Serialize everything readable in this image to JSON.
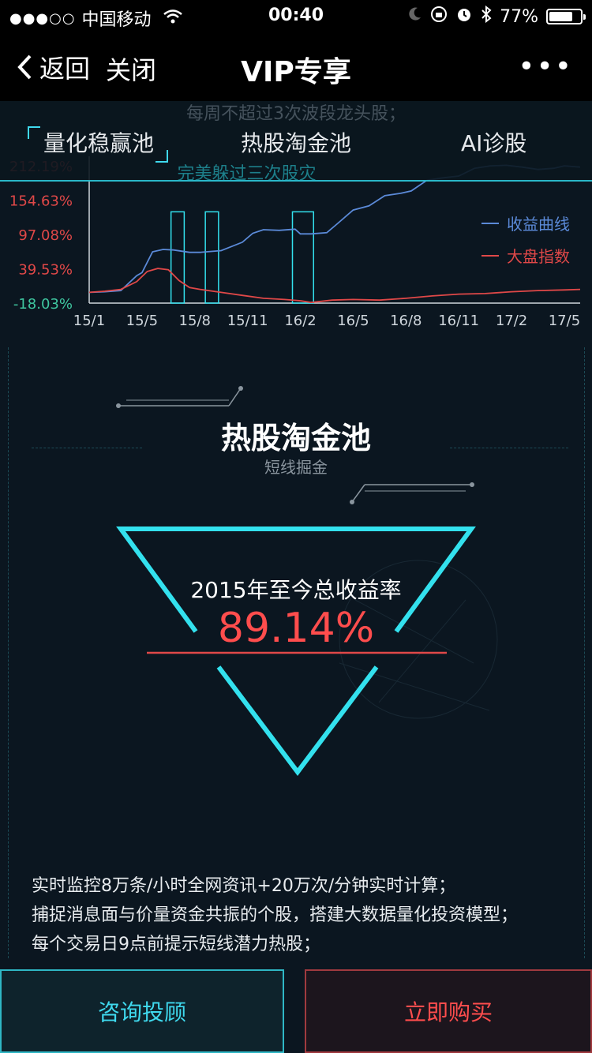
{
  "status_bar": {
    "signal": "●●●○○",
    "carrier": "中国移动",
    "time": "00:40",
    "battery": "77%",
    "battery_level": 0.77
  },
  "nav": {
    "back": "返回",
    "close": "关闭",
    "title": "VIP专享",
    "more": "•••"
  },
  "tabs": {
    "ghost_text_top": "每周不超过3次波段龙头股；",
    "ghost_text_bottom": "完美躲过三次股灾",
    "items": [
      "量化稳赢池",
      "热股淘金池",
      "AI诊股"
    ],
    "active": 0
  },
  "chart_data": {
    "type": "line",
    "ytick_labels": [
      "212.19%",
      "154.63%",
      "97.08%",
      "39.53%",
      "-18.03%"
    ],
    "ytick_values": [
      212.19,
      154.63,
      97.08,
      39.53,
      -18.03
    ],
    "ylim": [
      -18.03,
      212.19
    ],
    "x_categories": [
      "15/1",
      "15/5",
      "15/8",
      "15/11",
      "16/2",
      "16/5",
      "16/8",
      "16/11",
      "17/2",
      "17/5"
    ],
    "series": [
      {
        "name": "收益曲线",
        "color": "#5b8ad8",
        "x": [
          0,
          0.3,
          0.6,
          0.9,
          1.0,
          1.2,
          1.4,
          1.6,
          1.9,
          2.1,
          2.5,
          2.9,
          3.1,
          3.3,
          3.6,
          3.9,
          4.0,
          4.2,
          4.5,
          4.7,
          5.0,
          5.3,
          5.6,
          5.9,
          6.1,
          6.4,
          6.7,
          7.0,
          7.3,
          7.6,
          7.9,
          8.2,
          8.5,
          8.8,
          9.0,
          9.3
        ],
        "y": [
          0,
          1,
          3,
          28,
          33,
          68,
          72,
          71,
          67,
          67,
          70,
          84,
          99,
          105,
          104,
          106,
          98,
          98,
          100,
          115,
          138,
          145,
          162,
          166,
          170,
          188,
          192,
          195,
          208,
          212,
          213,
          210,
          206,
          208,
          212,
          210
        ]
      },
      {
        "name": "大盘指数",
        "color": "#e04848",
        "x": [
          0,
          0.3,
          0.6,
          0.9,
          1.1,
          1.3,
          1.5,
          1.7,
          1.9,
          2.1,
          2.5,
          2.9,
          3.3,
          3.7,
          4.0,
          4.2,
          4.6,
          5.0,
          5.5,
          6.0,
          6.5,
          7.0,
          7.5,
          8.0,
          8.5,
          9.0,
          9.3
        ],
        "y": [
          0,
          2,
          5,
          18,
          35,
          40,
          38,
          20,
          8,
          5,
          0,
          -5,
          -10,
          -12,
          -14,
          -17,
          -13,
          -12,
          -13,
          -10,
          -6,
          -3,
          -2,
          1,
          3,
          4,
          5
        ]
      }
    ],
    "highlight_ranges": [
      [
        1.55,
        1.8
      ],
      [
        2.2,
        2.45
      ],
      [
        3.85,
        4.25
      ]
    ],
    "legend_position": "right",
    "grid": false
  },
  "section": {
    "title": "热股淘金池",
    "subtitle": "短线掘金",
    "rate_label": "2015年至今总收益率",
    "rate_value": "89.14%"
  },
  "description": [
    "实时监控8万条/小时全网资讯+20万次/分钟实时计算；",
    "捕捉消息面与价量资金共振的个股，搭建大数据量化投资模型；",
    "每个交易日9点前提示短线潜力热股；"
  ],
  "buttons": {
    "consult": "咨询投顾",
    "buy": "立即购买"
  },
  "colors": {
    "accent_cyan": "#3fd9ee",
    "accent_red": "#ff4d4d",
    "background": "#0b1620"
  }
}
